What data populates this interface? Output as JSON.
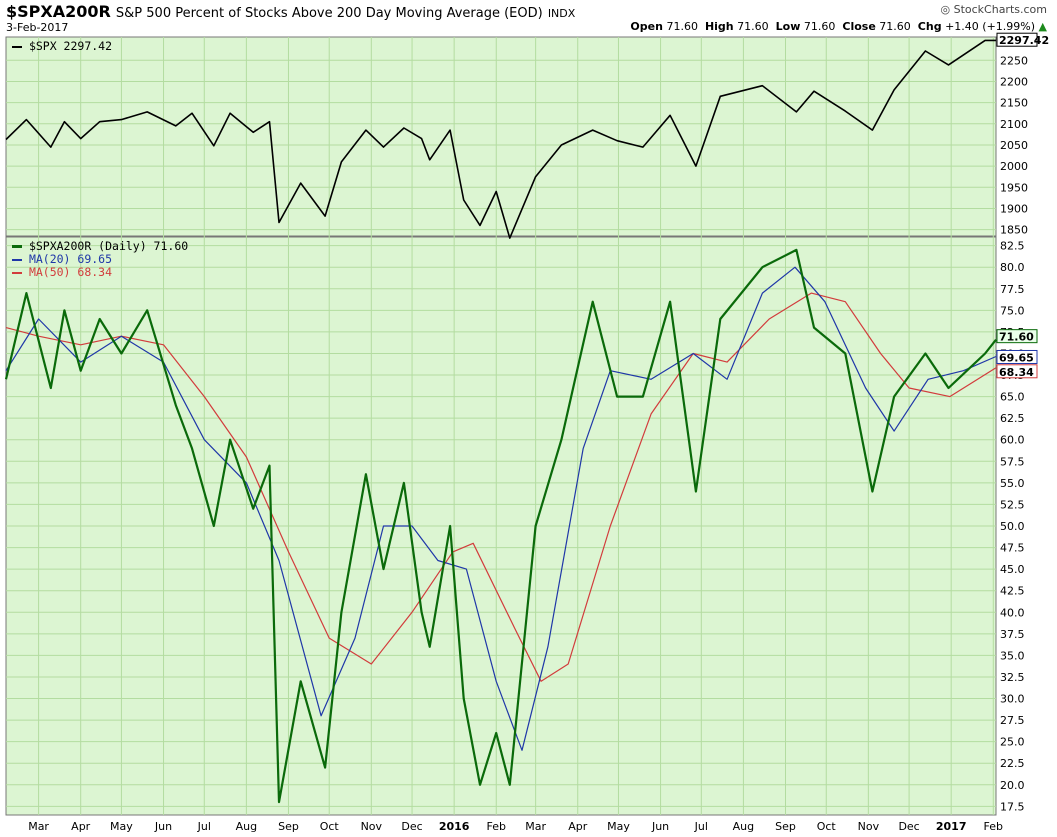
{
  "header": {
    "symbol": "$SPXA200R",
    "description": "S&P 500 Percent of Stocks Above 200 Day Moving Average (EOD)",
    "exchange": "INDX",
    "date": "3-Feb-2017",
    "brand": "StockCharts.com",
    "open_label": "Open",
    "open": "71.60",
    "high_label": "High",
    "high": "71.60",
    "low_label": "Low",
    "low": "71.60",
    "close_label": "Close",
    "close": "71.60",
    "chg_label": "Chg",
    "chg": "+1.40 (+1.99%)"
  },
  "colors": {
    "panel_bg": "#dcf5d2",
    "grid": "#b3dca0",
    "spx_line": "#000000",
    "breadth_line": "#0a6a0a",
    "ma20": "#1f37a8",
    "ma50": "#d23c3c",
    "up_arrow": "#1d8a1d"
  },
  "chart_data": [
    {
      "type": "line",
      "panel": "top",
      "legend": "$SPX 2297.42",
      "series": [
        {
          "name": "$SPX",
          "last": 2297.42
        }
      ],
      "ylim": [
        1835,
        2305
      ],
      "y_ticks": [
        1850,
        1900,
        1950,
        2000,
        2050,
        2100,
        2150,
        2200,
        2250
      ],
      "last_label": "2297.42",
      "x": [
        "2015-03",
        "2015-04",
        "2015-05",
        "2015-06",
        "2015-07",
        "2015-08",
        "2015-09",
        "2015-10",
        "2015-11",
        "2015-12",
        "2016-01",
        "2016-02",
        "2016-03",
        "2016-04",
        "2016-05",
        "2016-06",
        "2016-07",
        "2016-08",
        "2016-09",
        "2016-10",
        "2016-11",
        "2016-12",
        "2017-01",
        "2017-02"
      ],
      "points": [
        [
          "2015-02-05",
          2063
        ],
        [
          "2015-02-20",
          2110
        ],
        [
          "2015-03-10",
          2045
        ],
        [
          "2015-03-20",
          2105
        ],
        [
          "2015-04-01",
          2065
        ],
        [
          "2015-04-15",
          2105
        ],
        [
          "2015-05-01",
          2110
        ],
        [
          "2015-05-20",
          2128
        ],
        [
          "2015-06-10",
          2095
        ],
        [
          "2015-06-22",
          2125
        ],
        [
          "2015-07-08",
          2048
        ],
        [
          "2015-07-20",
          2125
        ],
        [
          "2015-08-06",
          2080
        ],
        [
          "2015-08-18",
          2105
        ],
        [
          "2015-08-25",
          1867
        ],
        [
          "2015-09-10",
          1960
        ],
        [
          "2015-09-28",
          1882
        ],
        [
          "2015-10-10",
          2010
        ],
        [
          "2015-10-28",
          2085
        ],
        [
          "2015-11-10",
          2045
        ],
        [
          "2015-11-25",
          2090
        ],
        [
          "2015-12-08",
          2065
        ],
        [
          "2015-12-14",
          2015
        ],
        [
          "2015-12-29",
          2085
        ],
        [
          "2016-01-08",
          1920
        ],
        [
          "2016-01-20",
          1860
        ],
        [
          "2016-02-01",
          1940
        ],
        [
          "2016-02-11",
          1830
        ],
        [
          "2016-03-01",
          1975
        ],
        [
          "2016-03-20",
          2050
        ],
        [
          "2016-04-12",
          2085
        ],
        [
          "2016-04-30",
          2060
        ],
        [
          "2016-05-19",
          2045
        ],
        [
          "2016-06-08",
          2120
        ],
        [
          "2016-06-27",
          2000
        ],
        [
          "2016-07-15",
          2165
        ],
        [
          "2016-08-15",
          2190
        ],
        [
          "2016-09-09",
          2128
        ],
        [
          "2016-09-22",
          2177
        ],
        [
          "2016-10-15",
          2130
        ],
        [
          "2016-11-04",
          2085
        ],
        [
          "2016-11-20",
          2180
        ],
        [
          "2016-12-13",
          2272
        ],
        [
          "2016-12-30",
          2239
        ],
        [
          "2017-01-26",
          2297
        ],
        [
          "2017-02-03",
          2297
        ]
      ]
    },
    {
      "type": "line",
      "panel": "bottom",
      "series": [
        {
          "name": "$SPXA200R (Daily)",
          "last": 71.6
        },
        {
          "name": "MA(20)",
          "last": 69.65
        },
        {
          "name": "MA(50)",
          "last": 68.34
        }
      ],
      "legend": [
        "$SPXA200R (Daily) 71.60",
        "MA(20) 69.65",
        "MA(50) 68.34"
      ],
      "ylim": [
        16.5,
        83.5
      ],
      "y_ticks": [
        17.5,
        20.0,
        22.5,
        25.0,
        27.5,
        30.0,
        32.5,
        35.0,
        37.5,
        40.0,
        42.5,
        45.0,
        47.5,
        50.0,
        52.5,
        55.0,
        57.5,
        60.0,
        62.5,
        65.0,
        67.5,
        70.0,
        72.5,
        75.0,
        77.5,
        80.0,
        82.5
      ],
      "x_labels": [
        "Mar",
        "Apr",
        "May",
        "Jun",
        "Jul",
        "Aug",
        "Sep",
        "Oct",
        "Nov",
        "Dec",
        "2016",
        "Feb",
        "Mar",
        "Apr",
        "May",
        "Jun",
        "Jul",
        "Aug",
        "Sep",
        "Oct",
        "Nov",
        "Dec",
        "2017",
        "Feb"
      ],
      "x_label_positions": [
        "2015-03",
        "2015-04",
        "2015-05",
        "2015-06",
        "2015-07",
        "2015-08",
        "2015-09",
        "2015-10",
        "2015-11",
        "2015-12",
        "2016-01",
        "2016-02",
        "2016-03",
        "2016-04",
        "2016-05",
        "2016-06",
        "2016-07",
        "2016-08",
        "2016-09",
        "2016-10",
        "2016-11",
        "2016-12",
        "2017-01",
        "2017-02"
      ],
      "breadth_points": [
        [
          "2015-02-05",
          67
        ],
        [
          "2015-02-20",
          77
        ],
        [
          "2015-03-10",
          66
        ],
        [
          "2015-03-20",
          75
        ],
        [
          "2015-04-01",
          68
        ],
        [
          "2015-04-15",
          74
        ],
        [
          "2015-05-01",
          70
        ],
        [
          "2015-05-20",
          75
        ],
        [
          "2015-06-10",
          64
        ],
        [
          "2015-06-22",
          59
        ],
        [
          "2015-07-08",
          50
        ],
        [
          "2015-07-20",
          60
        ],
        [
          "2015-08-06",
          52
        ],
        [
          "2015-08-18",
          57
        ],
        [
          "2015-08-25",
          18
        ],
        [
          "2015-09-10",
          32
        ],
        [
          "2015-09-28",
          22
        ],
        [
          "2015-10-10",
          40
        ],
        [
          "2015-10-28",
          56
        ],
        [
          "2015-11-10",
          45
        ],
        [
          "2015-11-25",
          55
        ],
        [
          "2015-12-08",
          40
        ],
        [
          "2015-12-14",
          36
        ],
        [
          "2015-12-29",
          50
        ],
        [
          "2016-01-08",
          30
        ],
        [
          "2016-01-20",
          20
        ],
        [
          "2016-02-01",
          26
        ],
        [
          "2016-02-11",
          20
        ],
        [
          "2016-03-01",
          50
        ],
        [
          "2016-03-20",
          60
        ],
        [
          "2016-04-12",
          76
        ],
        [
          "2016-04-30",
          65
        ],
        [
          "2016-05-19",
          65
        ],
        [
          "2016-06-08",
          76
        ],
        [
          "2016-06-27",
          54
        ],
        [
          "2016-07-15",
          74
        ],
        [
          "2016-08-15",
          80
        ],
        [
          "2016-09-09",
          82
        ],
        [
          "2016-09-22",
          73
        ],
        [
          "2016-10-15",
          70
        ],
        [
          "2016-11-04",
          54
        ],
        [
          "2016-11-20",
          65
        ],
        [
          "2016-12-13",
          70
        ],
        [
          "2016-12-30",
          66
        ],
        [
          "2017-01-26",
          70
        ],
        [
          "2017-02-03",
          71.6
        ]
      ],
      "ma20_points": [
        [
          "2015-02-05",
          68
        ],
        [
          "2015-03-01",
          74
        ],
        [
          "2015-04-01",
          69
        ],
        [
          "2015-05-01",
          72
        ],
        [
          "2015-06-01",
          69
        ],
        [
          "2015-07-01",
          60
        ],
        [
          "2015-08-01",
          55
        ],
        [
          "2015-08-25",
          46
        ],
        [
          "2015-09-25",
          28
        ],
        [
          "2015-10-20",
          37
        ],
        [
          "2015-11-10",
          50
        ],
        [
          "2015-12-01",
          50
        ],
        [
          "2015-12-20",
          46
        ],
        [
          "2016-01-10",
          45
        ],
        [
          "2016-02-01",
          32
        ],
        [
          "2016-02-20",
          24
        ],
        [
          "2016-03-10",
          36
        ],
        [
          "2016-04-05",
          59
        ],
        [
          "2016-04-25",
          68
        ],
        [
          "2016-05-25",
          67
        ],
        [
          "2016-06-25",
          70
        ],
        [
          "2016-07-20",
          67
        ],
        [
          "2016-08-15",
          77
        ],
        [
          "2016-09-08",
          80
        ],
        [
          "2016-09-30",
          76
        ],
        [
          "2016-10-30",
          66
        ],
        [
          "2016-11-20",
          61
        ],
        [
          "2016-12-15",
          67
        ],
        [
          "2017-01-10",
          68
        ],
        [
          "2017-02-03",
          69.65
        ]
      ],
      "ma50_points": [
        [
          "2015-02-05",
          73
        ],
        [
          "2015-03-01",
          72
        ],
        [
          "2015-04-01",
          71
        ],
        [
          "2015-05-01",
          72
        ],
        [
          "2015-06-01",
          71
        ],
        [
          "2015-07-01",
          65
        ],
        [
          "2015-08-01",
          58
        ],
        [
          "2015-09-01",
          47
        ],
        [
          "2015-10-01",
          37
        ],
        [
          "2015-11-01",
          34
        ],
        [
          "2015-12-01",
          40
        ],
        [
          "2015-12-31",
          47
        ],
        [
          "2016-01-15",
          48
        ],
        [
          "2016-02-15",
          38
        ],
        [
          "2016-03-05",
          32
        ],
        [
          "2016-03-25",
          34
        ],
        [
          "2016-04-25",
          50
        ],
        [
          "2016-05-25",
          63
        ],
        [
          "2016-06-25",
          70
        ],
        [
          "2016-07-20",
          69
        ],
        [
          "2016-08-20",
          74
        ],
        [
          "2016-09-20",
          77
        ],
        [
          "2016-10-15",
          76
        ],
        [
          "2016-11-10",
          70
        ],
        [
          "2016-12-01",
          66
        ],
        [
          "2016-12-31",
          65
        ],
        [
          "2017-02-03",
          68.34
        ]
      ],
      "last_labels": [
        "71.60",
        "69.65",
        "68.34"
      ]
    }
  ]
}
